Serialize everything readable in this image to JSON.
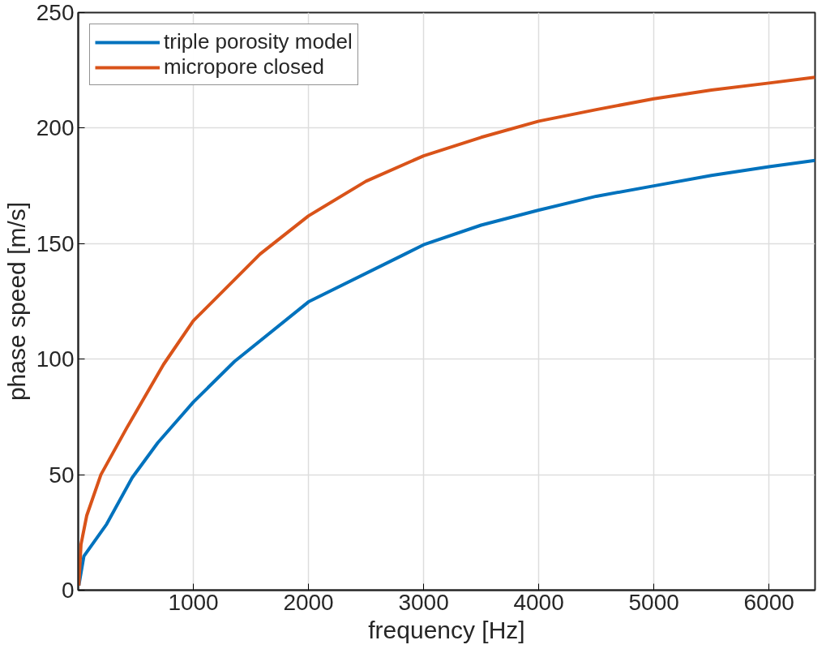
{
  "chart_data": {
    "type": "line",
    "xlabel": "frequency [Hz]",
    "ylabel": "phase speed [m/s]",
    "xlim": [
      0,
      6400
    ],
    "xticks": [
      1000,
      2000,
      3000,
      4000,
      5000,
      6000
    ],
    "ylim": [
      0,
      250
    ],
    "yticks": [
      0,
      50,
      100,
      150,
      200,
      250
    ],
    "grid": true,
    "legend": "top left",
    "line_style": "solid",
    "series": [
      {
        "name": "triple porosity model",
        "color": "#0072bd",
        "x": [
          5,
          49,
          247,
          469,
          691,
          1000,
          1358,
          2000,
          2839,
          3000,
          3500,
          4000,
          4500,
          5000,
          5500,
          6000,
          6400
        ],
        "values": [
          2,
          14.7,
          28.6,
          48.7,
          63.8,
          81.4,
          99,
          124.8,
          145.5,
          149.5,
          158,
          164.5,
          170.5,
          175,
          179.5,
          183.3,
          186
        ]
      },
      {
        "name": "micropore closed",
        "color": "#d95319",
        "x": [
          5,
          24,
          74,
          197,
          419,
          741,
          1000,
          1580,
          2000,
          2500,
          3000,
          3500,
          4000,
          4500,
          5000,
          5500,
          6000,
          6400
        ],
        "values": [
          2,
          19.8,
          32.3,
          50,
          70,
          97.7,
          116.6,
          145.5,
          162,
          177,
          188,
          196,
          203,
          208,
          212.7,
          216.5,
          219.5,
          222
        ]
      }
    ]
  }
}
